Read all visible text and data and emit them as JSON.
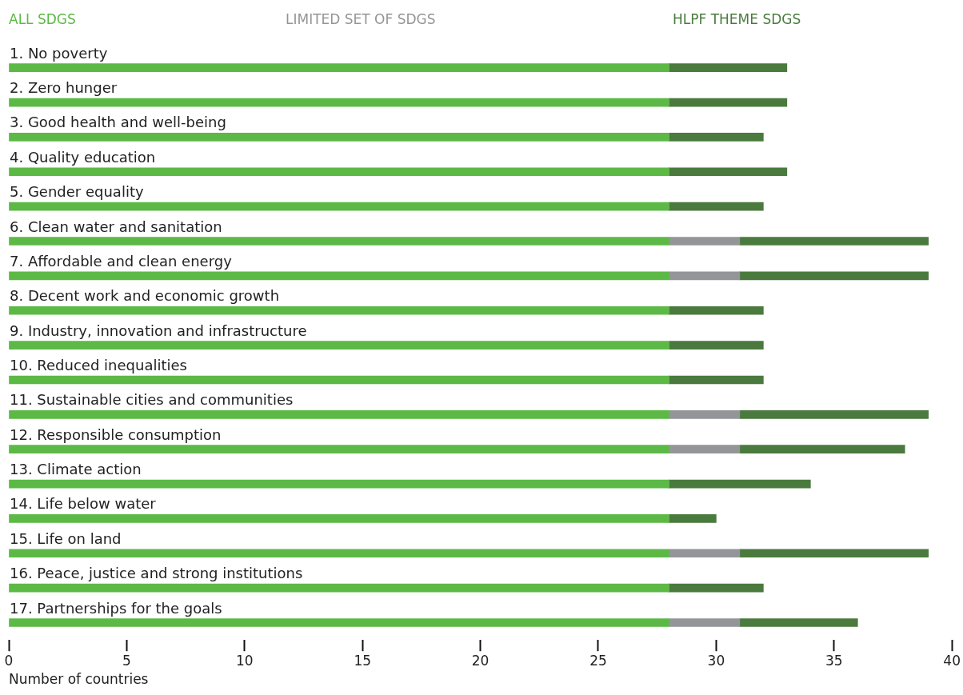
{
  "chart_data": {
    "type": "bar",
    "orientation": "horizontal",
    "stacked": true,
    "legend": "top",
    "grid": false,
    "xlabel": "Number of countries",
    "categories": [
      "1. No poverty",
      "2. Zero hunger",
      "3. Good health and well-being",
      "4. Quality education",
      "5. Gender equality",
      "6. Clean water and sanitation",
      "7. Affordable and clean energy",
      "8. Decent work and economic growth",
      "9. Industry, innovation and infrastructure",
      "10. Reduced inequalities",
      "11. Sustainable cities and communities",
      "12. Responsible consumption",
      "13. Climate action",
      "14. Life below water",
      "15. Life on land",
      "16. Peace, justice and strong institutions",
      "17. Partnerships for the goals"
    ],
    "series": [
      {
        "name": "ALL SDGS",
        "color": "#5cb946",
        "values": [
          28,
          28,
          28,
          28,
          28,
          28,
          28,
          28,
          28,
          28,
          28,
          28,
          28,
          28,
          28,
          28,
          28
        ]
      },
      {
        "name": "LIMITED SET OF SDGS",
        "color": "#939598",
        "values": [
          0,
          0,
          0,
          0,
          0,
          3,
          3,
          0,
          0,
          0,
          3,
          3,
          0,
          0,
          3,
          0,
          3
        ]
      },
      {
        "name": "HLPF THEME SDGS",
        "color": "#4a7a3d",
        "values": [
          5,
          5,
          4,
          5,
          4,
          8,
          8,
          4,
          4,
          4,
          8,
          7,
          6,
          2,
          8,
          4,
          5
        ]
      }
    ],
    "xlim": [
      0,
      40
    ],
    "xticks": [
      0,
      5,
      10,
      15,
      20,
      25,
      30,
      35,
      40
    ]
  }
}
